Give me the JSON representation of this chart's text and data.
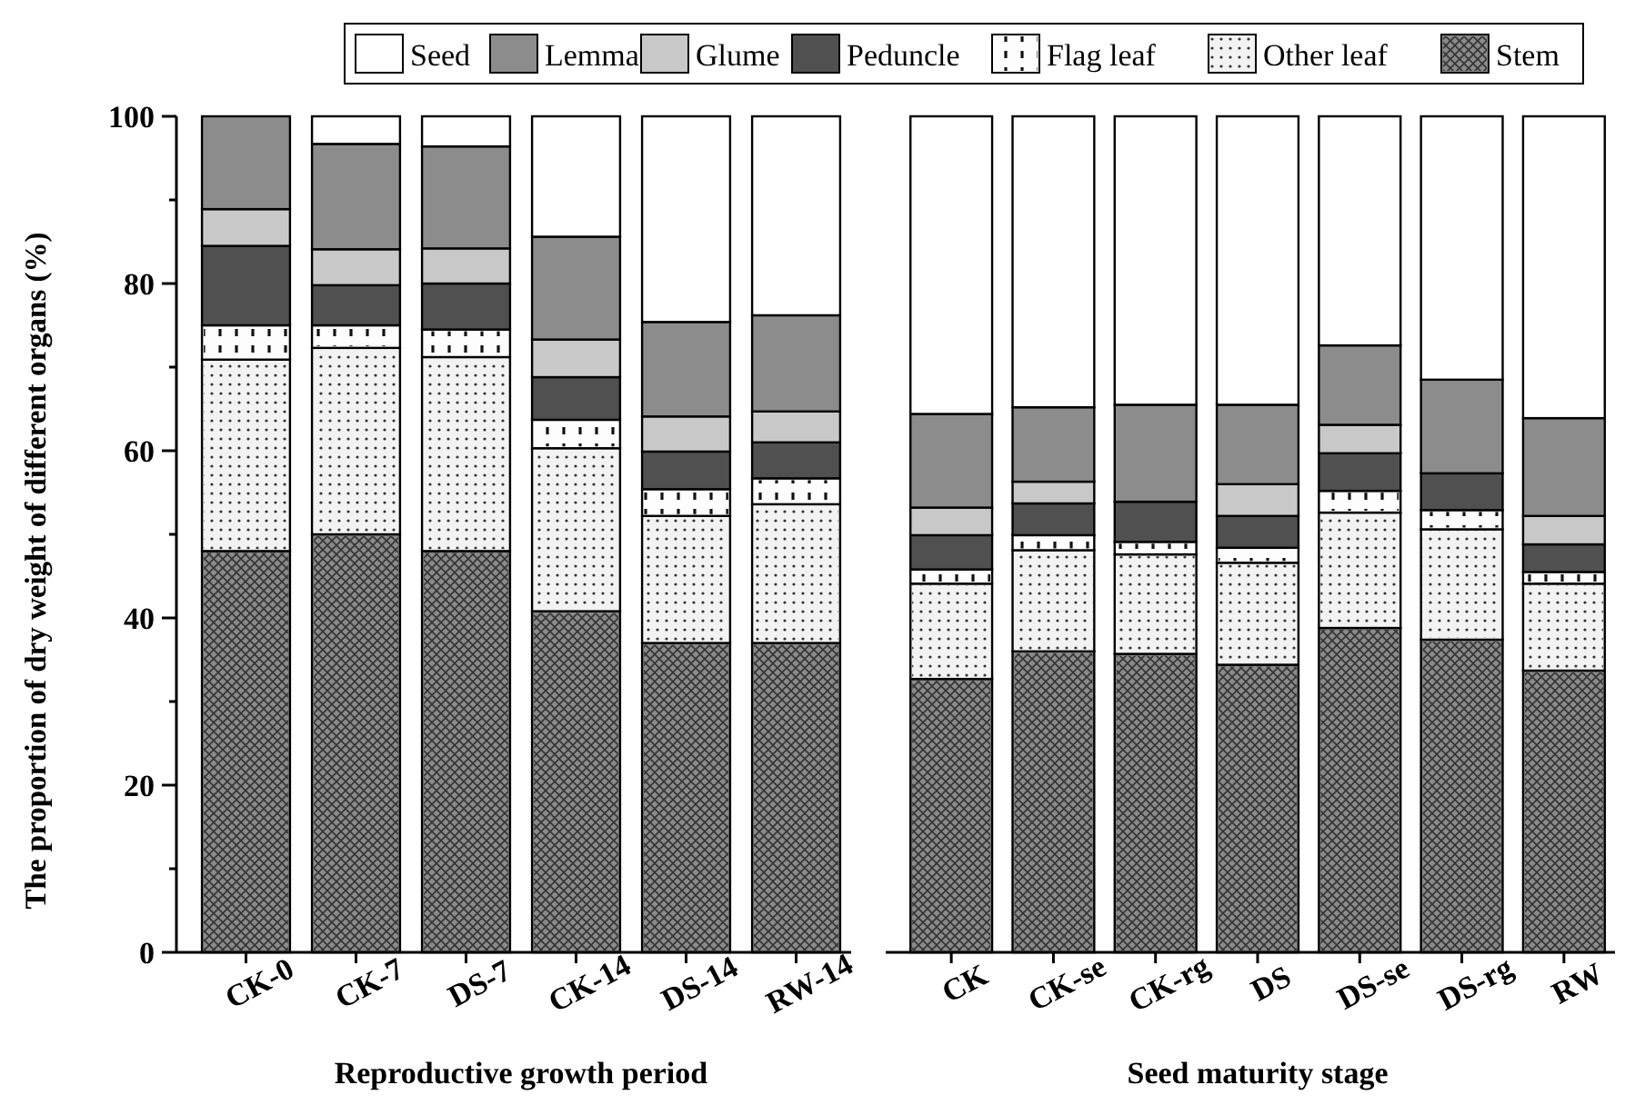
{
  "chart_data": [
    {
      "type": "bar",
      "stacked": true,
      "xlabel": "Reproductive growth period",
      "ylabel": "The proportion of dry weight of different organs (%)",
      "categories": [
        "CK-0",
        "CK-7",
        "DS-7",
        "CK-14",
        "DS-14",
        "RW-14"
      ],
      "ylim": [
        0,
        100
      ],
      "yticks": [
        0,
        {
          "value": 10,
          "label": null
        },
        20,
        {
          "value": 30,
          "label": null
        },
        40,
        {
          "value": 50,
          "label": null
        },
        60,
        {
          "value": 70,
          "label": null
        },
        80,
        {
          "value": 90,
          "label": null
        },
        100
      ],
      "legend": "top",
      "series": [
        {
          "name": "Stem",
          "color": "#8a8a8a",
          "values": [
            48,
            50,
            48,
            40.8,
            37,
            37
          ]
        },
        {
          "name": "Other leaf",
          "color": "#f2f2f2",
          "values": [
            22.9,
            22.3,
            23.2,
            19.5,
            15.2,
            16.6
          ]
        },
        {
          "name": "Flag leaf",
          "color": "#fdfdfd",
          "values": [
            4.1,
            2.7,
            3.3,
            3.4,
            3.2,
            3.1
          ]
        },
        {
          "name": "Peduncle",
          "color": "#505050",
          "values": [
            9.5,
            4.8,
            5.5,
            5.1,
            4.5,
            4.3
          ]
        },
        {
          "name": "Glume",
          "color": "#c8c8c8",
          "values": [
            4.4,
            4.3,
            4.2,
            4.5,
            4.2,
            3.7
          ]
        },
        {
          "name": "Lemma",
          "color": "#8c8c8c",
          "values": [
            11.1,
            12.6,
            12.2,
            12.3,
            11.3,
            11.5
          ]
        },
        {
          "name": "Seed",
          "color": "#ffffff",
          "values": [
            0,
            3.3,
            3.6,
            14.4,
            24.6,
            23.8
          ]
        }
      ]
    },
    {
      "type": "bar",
      "stacked": true,
      "xlabel": "Seed maturity stage",
      "categories": [
        "CK",
        "CK-se",
        "CK-rg",
        "DS",
        "DS-se",
        "DS-rg",
        "RW"
      ],
      "ylim": [
        0,
        100
      ],
      "tick_labels": "x",
      "series": [
        {
          "color": "#8a8a8a",
          "values": [
            32.7,
            36,
            35.7,
            34.4,
            38.8,
            37.4,
            33.7
          ]
        },
        {
          "color": "#f2f2f2",
          "values": [
            11.4,
            12.1,
            11.9,
            12.2,
            13.8,
            13.2,
            10.4
          ]
        },
        {
          "color": "#fdfdfd",
          "values": [
            1.7,
            1.8,
            1.5,
            1.8,
            2.6,
            2.3,
            1.4
          ]
        },
        {
          "color": "#505050",
          "values": [
            4.1,
            3.8,
            4.8,
            3.8,
            4.5,
            4.4,
            3.3
          ]
        },
        {
          "color": "#c8c8c8",
          "values": [
            3.3,
            2.6,
            0,
            3.8,
            3.4,
            0,
            3.4
          ]
        },
        {
          "color": "#8c8c8c",
          "values": [
            11.2,
            8.9,
            11.6,
            9.5,
            9.5,
            11.2,
            11.7
          ]
        },
        {
          "color": "#ffffff",
          "values": [
            35.6,
            34.8,
            34.5,
            34.5,
            27.4,
            31.5,
            36.1
          ]
        }
      ]
    }
  ]
}
